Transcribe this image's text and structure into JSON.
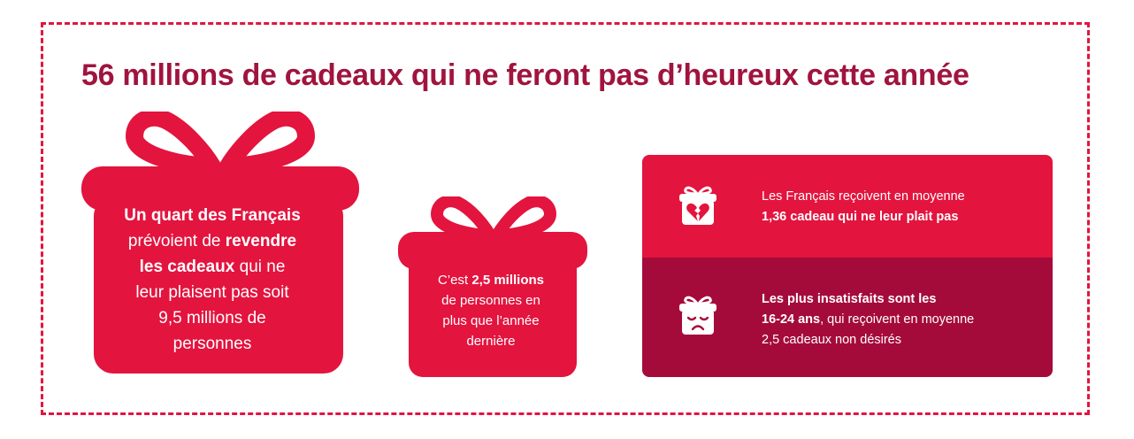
{
  "title": "56 millions de cadeaux qui ne feront pas d’heureux cette année",
  "colors": {
    "brand_red": "#e3143e",
    "dark_red": "#a50b3a",
    "title_color": "#a0143e"
  },
  "big_gift": {
    "line1_bold": "Un quart des Français",
    "line2_pre": "prévoient de ",
    "line2_bold": "revendre",
    "line3_bold": "les cadeaux",
    "line3_post": " qui ne",
    "line4": "leur plaisent pas soit",
    "line5": "9,5 millions de",
    "line6": "personnes"
  },
  "small_gift": {
    "line1_pre": "C’est ",
    "line1_bold": "2,5 millions",
    "line2": "de personnes en",
    "line3": "plus que l’année",
    "line4": "dernière"
  },
  "panel": {
    "top": {
      "icon": "broken-heart-gift-icon",
      "line1": "Les Français reçoivent en moyenne",
      "line2_bold": "1,36 cadeau qui ne leur plait pas"
    },
    "bottom": {
      "icon": "sad-gift-icon",
      "line1_bold": "Les plus insatisfaits sont les",
      "line2_bold": "16-24 ans",
      "line2_post": ", qui reçoivent en moyenne",
      "line3": "2,5 cadeaux non désirés"
    }
  }
}
